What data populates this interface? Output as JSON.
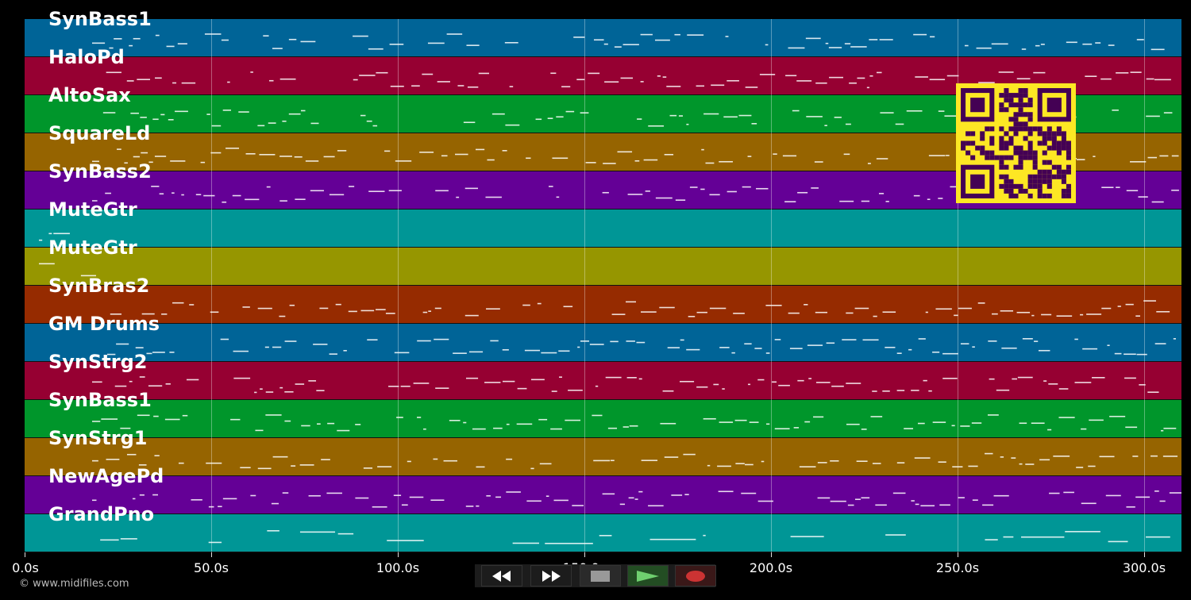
{
  "tracks": [
    {
      "name": "SynBass1",
      "color": "#006497"
    },
    {
      "name": "HaloPd",
      "color": "#960032"
    },
    {
      "name": "AltoSax",
      "color": "#00962b"
    },
    {
      "name": "SquareLd",
      "color": "#966400"
    },
    {
      "name": "SynBass2",
      "color": "#640096"
    },
    {
      "name": "MuteGtr",
      "color": "#009696"
    },
    {
      "name": "MuteGtr",
      "color": "#969600"
    },
    {
      "name": "SynBras2",
      "color": "#962b00"
    },
    {
      "name": "GM Drums",
      "color": "#006497"
    },
    {
      "name": "SynStrg2",
      "color": "#960032"
    },
    {
      "name": "SynBass1",
      "color": "#00962b"
    },
    {
      "name": "SynStrg1",
      "color": "#966400"
    },
    {
      "name": "NewAgePd",
      "color": "#640096"
    },
    {
      "name": "GrandPno",
      "color": "#009696"
    }
  ],
  "timeline": {
    "ticks": [
      "0.0s",
      "50.0s",
      "100.0s",
      "150.0s",
      "200.0s",
      "250.0s",
      "300.0s"
    ],
    "duration_seconds": 310
  },
  "copyright": "© www.midifiles.com",
  "transport": {
    "rewind": "rewind-icon",
    "fast_forward": "fast-forward-icon",
    "stop": "stop-icon",
    "play": "play-icon",
    "record": "record-icon",
    "play_color": "#2ea043",
    "record_color": "#cc3333"
  },
  "qr_color": "#fde724",
  "qr_dark": "#440154"
}
